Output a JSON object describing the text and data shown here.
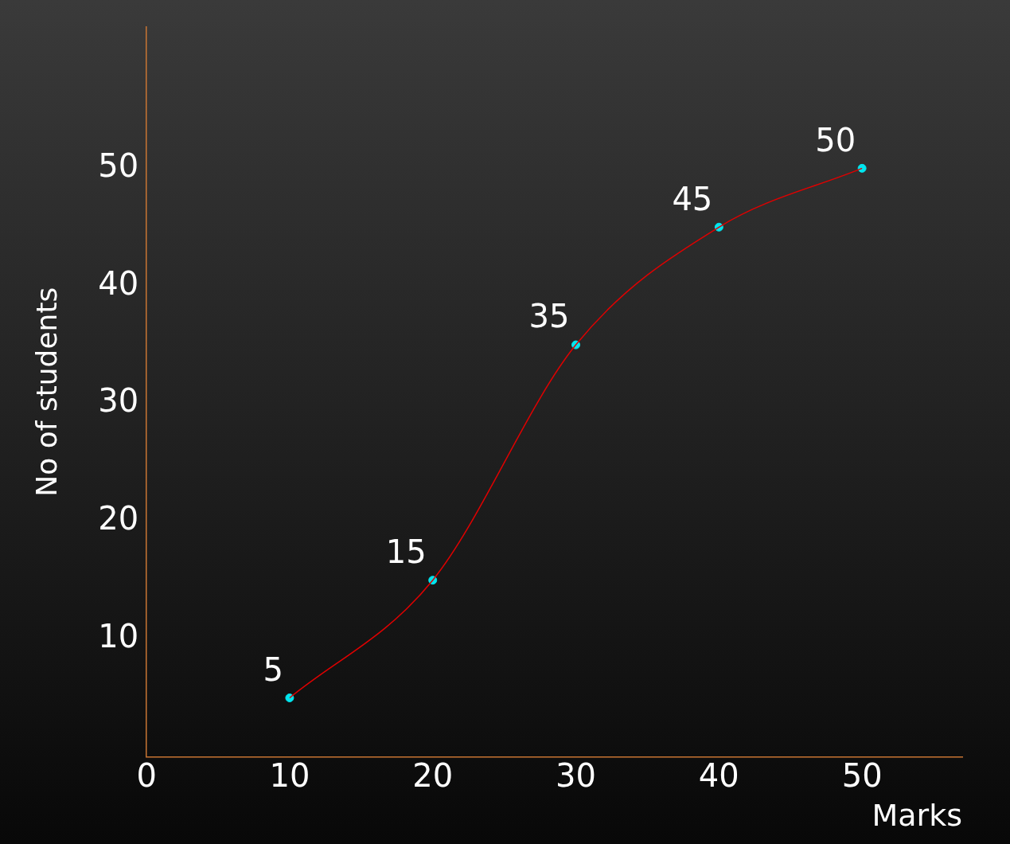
{
  "chart_data": {
    "type": "line",
    "xlabel": "Marks",
    "ylabel": "No of students",
    "x": [
      10,
      20,
      30,
      40,
      50
    ],
    "series": [
      {
        "color": "#e00000",
        "values": [
          5,
          15,
          35,
          45,
          50
        ],
        "marker": "none"
      },
      {
        "type": "scatter",
        "color": "#00e5ee",
        "values": [
          5,
          15,
          35,
          45,
          50
        ],
        "marker": "circle",
        "value_labels": [
          "5",
          "15",
          "35",
          "45",
          "50"
        ]
      }
    ],
    "xlim": [
      0,
      57
    ],
    "ylim": [
      0,
      62
    ],
    "xticks": [
      0,
      10,
      20,
      30,
      40,
      50
    ],
    "yticks": [
      10,
      20,
      30,
      40,
      50
    ],
    "grid": false,
    "legend": false
  }
}
